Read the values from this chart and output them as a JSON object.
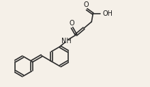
{
  "bg_color": "#f5f0e8",
  "line_color": "#2a2a2a",
  "line_width": 1.2,
  "font_size": 7.0,
  "font_color": "#1a1a1a",
  "figsize": [
    2.2,
    1.27
  ],
  "dpi": 100,
  "xlim": [
    0,
    22
  ],
  "ylim": [
    0,
    13
  ]
}
